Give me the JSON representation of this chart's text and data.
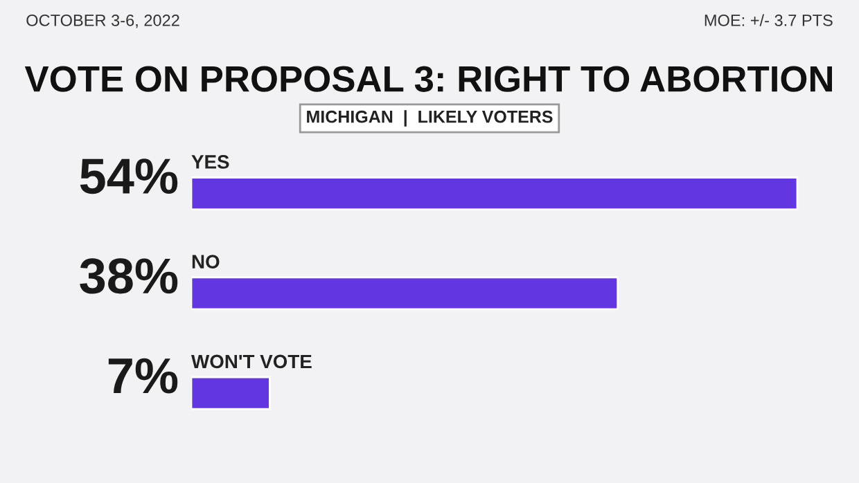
{
  "chart_data": {
    "type": "bar",
    "orientation": "horizontal",
    "title": "VOTE ON PROPOSAL 3: RIGHT TO ABORTION",
    "subtitle": "MICHIGAN  |  LIKELY VOTERS",
    "categories": [
      "YES",
      "NO",
      "WON'T VOTE"
    ],
    "values": [
      54,
      38,
      7
    ],
    "value_labels": [
      "54%",
      "38%",
      "7%"
    ],
    "color": "#6236e0",
    "annotations": [
      "OCTOBER 3-6, 2022",
      "MOE: +/- 3.7 PTS"
    ],
    "grid": false,
    "legend": false
  }
}
